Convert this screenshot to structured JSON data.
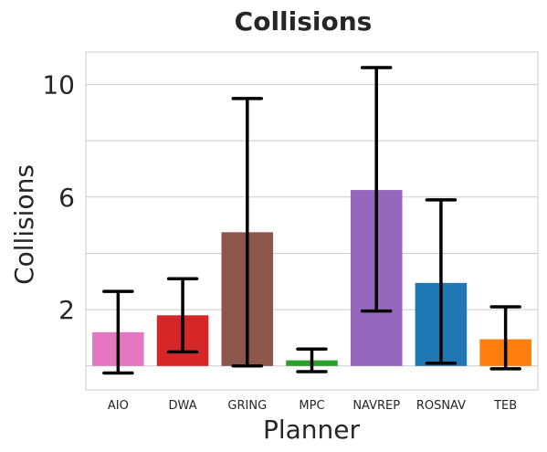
{
  "chart_data": {
    "type": "bar",
    "title": "Collisions",
    "xlabel": "Planner",
    "ylabel": "Collisions",
    "categories": [
      "AIO",
      "DWA",
      "GRING",
      "MPC",
      "NAVREP",
      "ROSNAV",
      "TEB"
    ],
    "values": [
      1.2,
      1.8,
      4.75,
      0.2,
      6.25,
      2.95,
      0.95
    ],
    "error_low": [
      -0.25,
      0.5,
      0.0,
      -0.2,
      1.95,
      0.1,
      -0.1
    ],
    "error_high": [
      2.65,
      3.1,
      9.5,
      0.6,
      10.6,
      5.9,
      2.1
    ],
    "colors": [
      "#e377c2",
      "#d62728",
      "#8c564b",
      "#2ca02c",
      "#9467bd",
      "#1f77b4",
      "#ff7f0e"
    ],
    "yticks": [
      2,
      6,
      10
    ],
    "ylim": [
      -0.85,
      11.15
    ],
    "grid": true,
    "grid_lines": [
      0,
      2,
      4,
      6,
      8,
      10
    ],
    "legend": "none"
  }
}
